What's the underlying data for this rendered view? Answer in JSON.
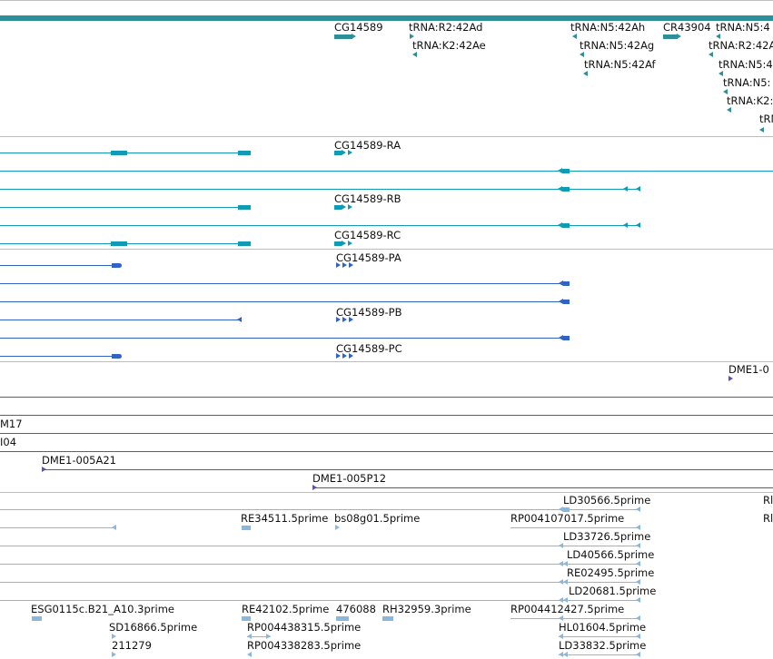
{
  "tracks": {
    "gene": {
      "labels": [
        "CG14589",
        "tRNA:R2:42Ad",
        "tRNA:K2:42Ae",
        "tRNA:N5:42Ah",
        "tRNA:N5:42Ag",
        "tRNA:N5:42Af",
        "CR43904",
        "tRNA:N5:4",
        "tRNA:R2:42A",
        "tRNA:N5:4",
        "tRNA:N5:",
        "tRNA:K2:",
        "tRN"
      ]
    },
    "transcripts": {
      "labels": [
        "CG14589-RA",
        "CG14589-RB",
        "CG14589-RC"
      ]
    },
    "proteins": {
      "labels": [
        "CG14589-PA",
        "CG14589-PB",
        "CG14589-PC"
      ]
    },
    "clones": {
      "labels": [
        "DME1-0",
        "M17",
        "I04",
        "DME1-005A21",
        "DME1-005P12"
      ]
    },
    "ests": {
      "labels": [
        "LD30566.5prime",
        "RE34511.5prime",
        "bs08g01.5prime",
        "RP004107017.5prime",
        "LD33726.5prime",
        "LD40566.5prime",
        "RE02495.5prime",
        "LD20681.5prime",
        "ESG0115c.B21_A10.3prime",
        "RE42102.5prime",
        "476088",
        "RH32959.3prime",
        "RP004412427.5prime",
        "SD16866.5prime",
        "RP004438315.5prime",
        "HL01604.5prime",
        "211279",
        "RP004338283.5prime",
        "LD33832.5prime",
        "Rl",
        "Rl"
      ]
    }
  },
  "colors": {
    "gene": "#2f8f99",
    "transcript": "#0f9bb5",
    "protein": "#2f63c4",
    "clone": "#5e53a3",
    "est": "#8ab8dc",
    "separator": "#bdbdbd"
  }
}
